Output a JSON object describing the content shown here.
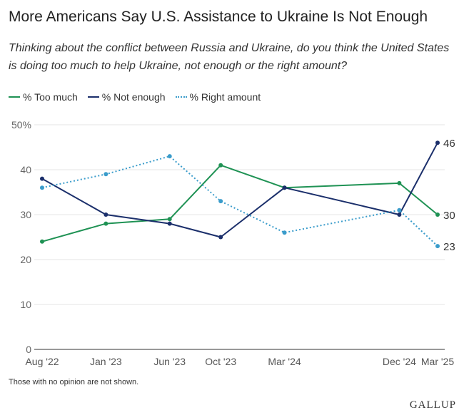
{
  "title": "More Americans Say U.S. Assistance to Ukraine Is Not Enough",
  "subtitle": "Thinking about the conflict between Russia and Ukraine, do you think the United States is doing too much to help Ukraine, not enough or the right amount?",
  "footnote": "Those with no opinion are not shown.",
  "logo": "GALLUP",
  "chart_data": {
    "type": "line",
    "x": [
      "Aug '22",
      "Jan '23",
      "Jun '23",
      "Oct '23",
      "Mar '24",
      "Dec '24",
      "Mar '25"
    ],
    "x_dates": [
      "2022-08",
      "2023-01",
      "2023-06",
      "2023-10",
      "2024-03",
      "2024-12",
      "2025-03"
    ],
    "ylim": [
      0,
      50
    ],
    "yticks": [
      "0",
      "10",
      "20",
      "30",
      "40",
      "50%"
    ],
    "grid": true,
    "legend": "top-left",
    "series": [
      {
        "name": "% Too much",
        "color": "#1f9254",
        "style": "solid",
        "values": [
          24,
          28,
          29,
          41,
          36,
          37,
          30
        ],
        "end_label": "30"
      },
      {
        "name": "% Not enough",
        "color": "#1b2f6b",
        "style": "solid",
        "values": [
          38,
          30,
          28,
          25,
          36,
          30,
          46
        ],
        "end_label": "46"
      },
      {
        "name": "% Right amount",
        "color": "#3a9ccb",
        "style": "dotted",
        "values": [
          36,
          39,
          43,
          33,
          26,
          31,
          23
        ],
        "end_label": "23"
      }
    ]
  }
}
